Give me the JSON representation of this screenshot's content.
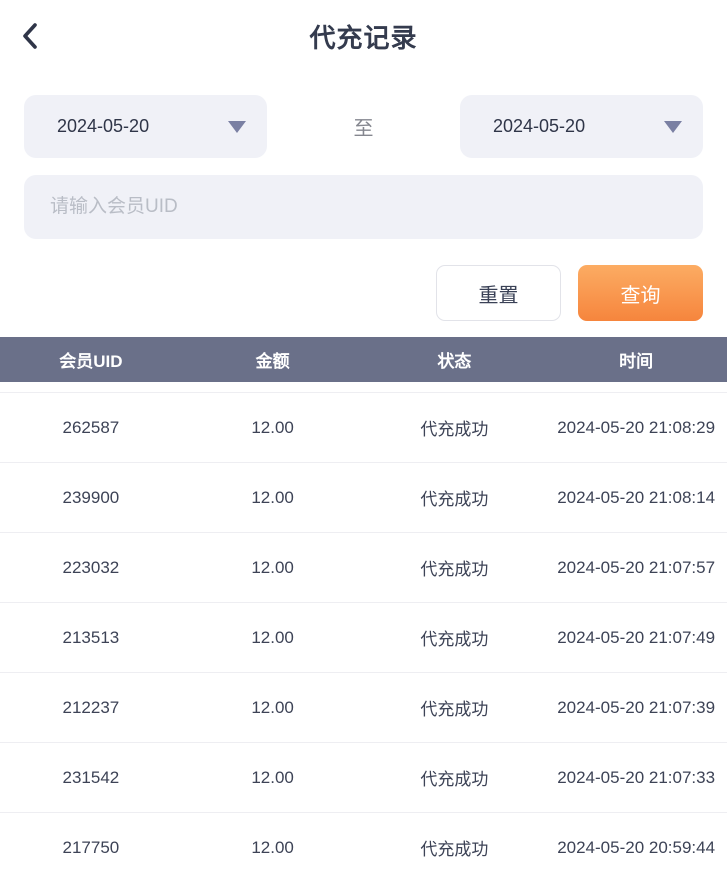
{
  "header": {
    "title": "代充记录"
  },
  "filters": {
    "date_from": "2024-05-20",
    "date_to": "2024-05-20",
    "to_label": "至",
    "uid_placeholder": "请输入会员UID",
    "reset_label": "重置",
    "query_label": "查询"
  },
  "table": {
    "columns": [
      "会员UID",
      "金额",
      "状态",
      "时间"
    ],
    "rows": [
      [
        "262587",
        "12.00",
        "代充成功",
        "2024-05-20 21:08:29"
      ],
      [
        "239900",
        "12.00",
        "代充成功",
        "2024-05-20 21:08:14"
      ],
      [
        "223032",
        "12.00",
        "代充成功",
        "2024-05-20 21:07:57"
      ],
      [
        "213513",
        "12.00",
        "代充成功",
        "2024-05-20 21:07:49"
      ],
      [
        "212237",
        "12.00",
        "代充成功",
        "2024-05-20 21:07:39"
      ],
      [
        "231542",
        "12.00",
        "代充成功",
        "2024-05-20 21:07:33"
      ],
      [
        "217750",
        "12.00",
        "代充成功",
        "2024-05-20 20:59:44"
      ]
    ]
  },
  "colors": {
    "accent_orange_top": "#fcac63",
    "accent_orange_bottom": "#f6853d",
    "table_header_bg": "#6a7089",
    "field_bg": "#f0f1f7",
    "text_dark": "#2f3548",
    "row_divider": "#eeeef2"
  },
  "icons": {
    "back": "chevron-left",
    "date_dropdown": "triangle-down"
  }
}
